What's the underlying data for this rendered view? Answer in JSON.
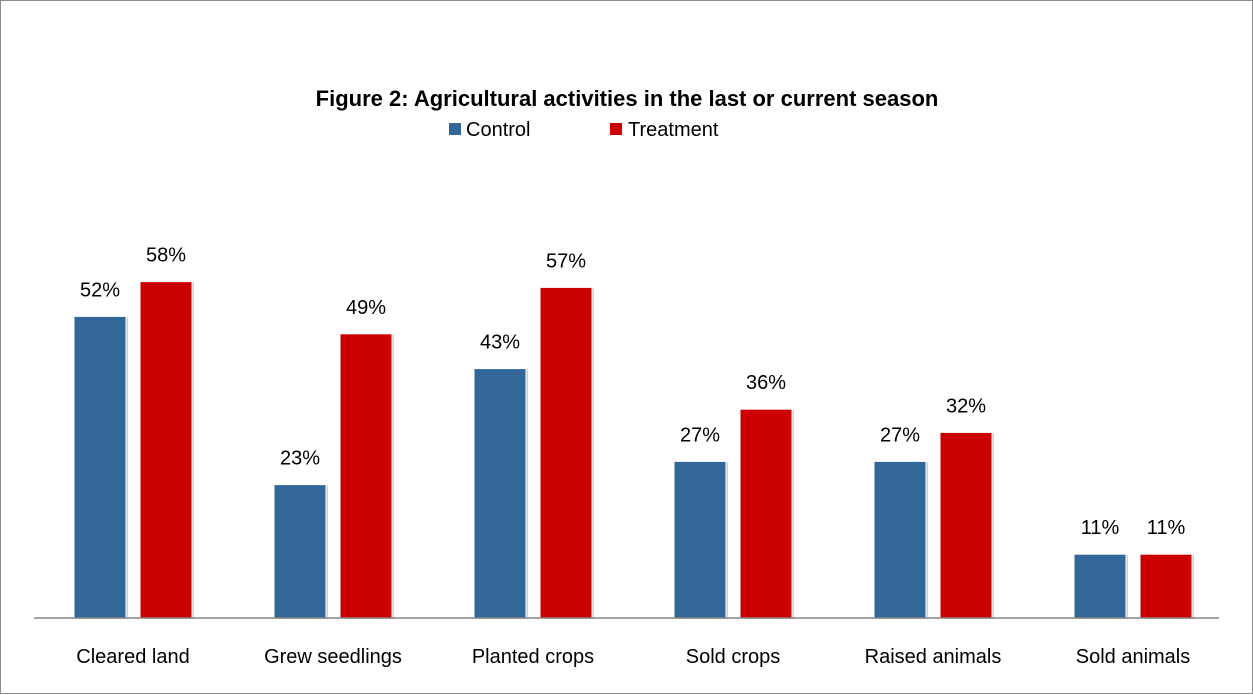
{
  "chart_data": {
    "type": "bar",
    "title": "Figure 2: Agricultural activities in the last or current season",
    "categories": [
      "Cleared land",
      "Grew seedlings",
      "Planted crops",
      "Sold crops",
      "Raised animals",
      "Sold animals"
    ],
    "series": [
      {
        "name": "Control",
        "color": "#336699",
        "values": [
          52,
          23,
          43,
          27,
          27,
          11
        ],
        "labels": [
          "52%",
          "23%",
          "43%",
          "27%",
          "27%",
          "11%"
        ]
      },
      {
        "name": "Treatment",
        "color": "#CC0000",
        "values": [
          58,
          49,
          57,
          36,
          32,
          11
        ],
        "labels": [
          "58%",
          "49%",
          "57%",
          "36%",
          "32%",
          "11%"
        ]
      }
    ],
    "ylim": [
      0,
      70
    ],
    "grid": false,
    "legend_position": "top-center",
    "xlabel": "",
    "ylabel": ""
  }
}
